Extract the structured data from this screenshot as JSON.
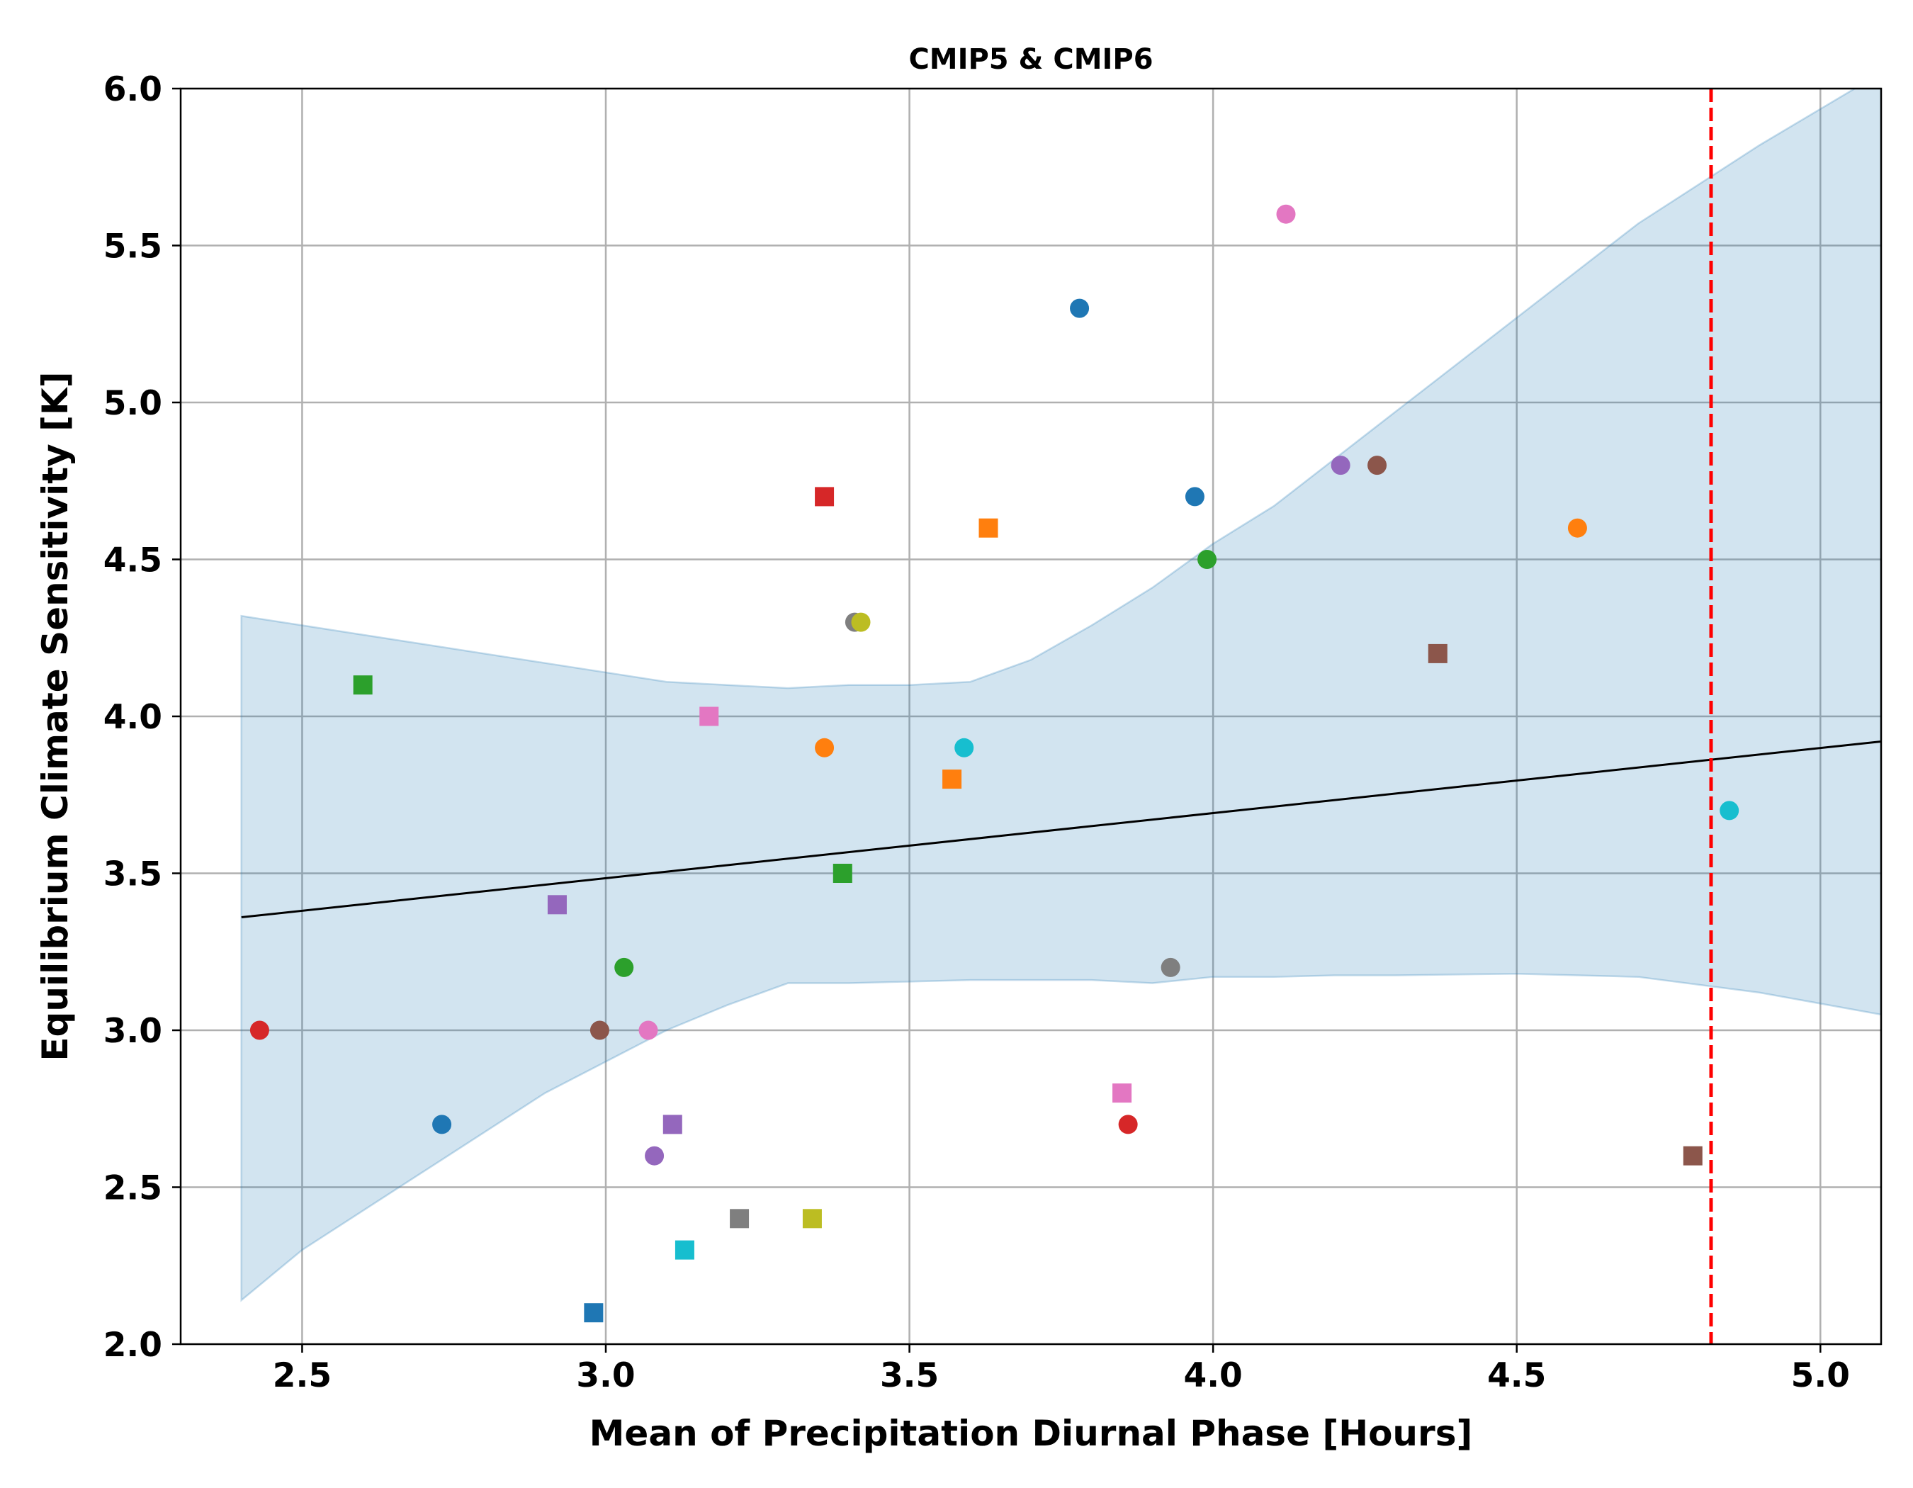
{
  "chart_data": {
    "type": "scatter",
    "title": "CMIP5 & CMIP6",
    "xlabel": "Mean of Precipitation Diurnal Phase [Hours]",
    "ylabel": "Equilibrium Climate Sensitivity [K]",
    "xlim": [
      2.3,
      5.1
    ],
    "ylim": [
      2.0,
      6.0
    ],
    "xticks": [
      "2.5",
      "3.0",
      "3.5",
      "4.0",
      "4.5",
      "5.0"
    ],
    "yticks": [
      "2.0",
      "2.5",
      "3.0",
      "3.5",
      "4.0",
      "4.5",
      "5.0",
      "5.5",
      "6.0"
    ],
    "grid": true,
    "circle_points": [
      {
        "x": 2.43,
        "y": 3.0,
        "color": "#d62728"
      },
      {
        "x": 2.73,
        "y": 2.7,
        "color": "#1f77b4"
      },
      {
        "x": 2.99,
        "y": 3.0,
        "color": "#8c564b"
      },
      {
        "x": 3.03,
        "y": 3.2,
        "color": "#2ca02c"
      },
      {
        "x": 3.07,
        "y": 3.0,
        "color": "#e377c2"
      },
      {
        "x": 3.08,
        "y": 2.6,
        "color": "#9467bd"
      },
      {
        "x": 3.36,
        "y": 3.9,
        "color": "#ff7f0e"
      },
      {
        "x": 3.41,
        "y": 4.3,
        "color": "#7f7f7f"
      },
      {
        "x": 3.42,
        "y": 4.3,
        "color": "#bcbd22"
      },
      {
        "x": 3.59,
        "y": 3.9,
        "color": "#17becf"
      },
      {
        "x": 3.78,
        "y": 5.3,
        "color": "#1f77b4"
      },
      {
        "x": 3.86,
        "y": 2.7,
        "color": "#d62728"
      },
      {
        "x": 3.93,
        "y": 3.2,
        "color": "#7f7f7f"
      },
      {
        "x": 3.97,
        "y": 4.7,
        "color": "#1f77b4"
      },
      {
        "x": 3.99,
        "y": 4.5,
        "color": "#2ca02c"
      },
      {
        "x": 4.12,
        "y": 5.6,
        "color": "#e377c2"
      },
      {
        "x": 4.21,
        "y": 4.8,
        "color": "#9467bd"
      },
      {
        "x": 4.27,
        "y": 4.8,
        "color": "#8c564b"
      },
      {
        "x": 4.6,
        "y": 4.6,
        "color": "#ff7f0e"
      },
      {
        "x": 4.85,
        "y": 3.7,
        "color": "#17becf"
      }
    ],
    "square_points": [
      {
        "x": 2.6,
        "y": 4.1,
        "color": "#2ca02c"
      },
      {
        "x": 2.92,
        "y": 3.4,
        "color": "#9467bd"
      },
      {
        "x": 2.98,
        "y": 2.1,
        "color": "#1f77b4"
      },
      {
        "x": 3.11,
        "y": 2.7,
        "color": "#9467bd"
      },
      {
        "x": 3.13,
        "y": 2.3,
        "color": "#17becf"
      },
      {
        "x": 3.17,
        "y": 4.0,
        "color": "#e377c2"
      },
      {
        "x": 3.22,
        "y": 2.4,
        "color": "#7f7f7f"
      },
      {
        "x": 3.34,
        "y": 2.4,
        "color": "#bcbd22"
      },
      {
        "x": 3.36,
        "y": 4.7,
        "color": "#d62728"
      },
      {
        "x": 3.39,
        "y": 3.5,
        "color": "#2ca02c"
      },
      {
        "x": 3.57,
        "y": 3.8,
        "color": "#ff7f0e"
      },
      {
        "x": 3.63,
        "y": 4.6,
        "color": "#ff7f0e"
      },
      {
        "x": 3.85,
        "y": 2.8,
        "color": "#e377c2"
      },
      {
        "x": 4.37,
        "y": 4.2,
        "color": "#8c564b"
      },
      {
        "x": 4.79,
        "y": 2.6,
        "color": "#8c564b"
      }
    ],
    "regression_line": {
      "x": [
        2.4,
        5.1
      ],
      "y": [
        3.36,
        3.92
      ],
      "color": "#000000"
    },
    "confidence_band": {
      "color": "#1f77b4",
      "x": [
        2.4,
        2.5,
        2.7,
        2.9,
        3.1,
        3.2,
        3.3,
        3.4,
        3.5,
        3.6,
        3.7,
        3.8,
        3.9,
        4.0,
        4.1,
        4.2,
        4.3,
        4.5,
        4.7,
        4.9,
        5.1
      ],
      "upper": [
        4.32,
        4.29,
        4.23,
        4.17,
        4.11,
        4.1,
        4.09,
        4.1,
        4.1,
        4.11,
        4.18,
        4.29,
        4.41,
        4.55,
        4.67,
        4.82,
        4.97,
        5.27,
        5.57,
        5.82,
        6.05
      ],
      "lower": [
        2.14,
        2.3,
        2.55,
        2.8,
        3.0,
        3.08,
        3.15,
        3.15,
        3.155,
        3.16,
        3.16,
        3.16,
        3.15,
        3.17,
        3.17,
        3.175,
        3.175,
        3.18,
        3.17,
        3.12,
        3.05
      ]
    },
    "reference_line": {
      "x": 4.82,
      "color": "#ff0000",
      "style": "dashed"
    }
  }
}
